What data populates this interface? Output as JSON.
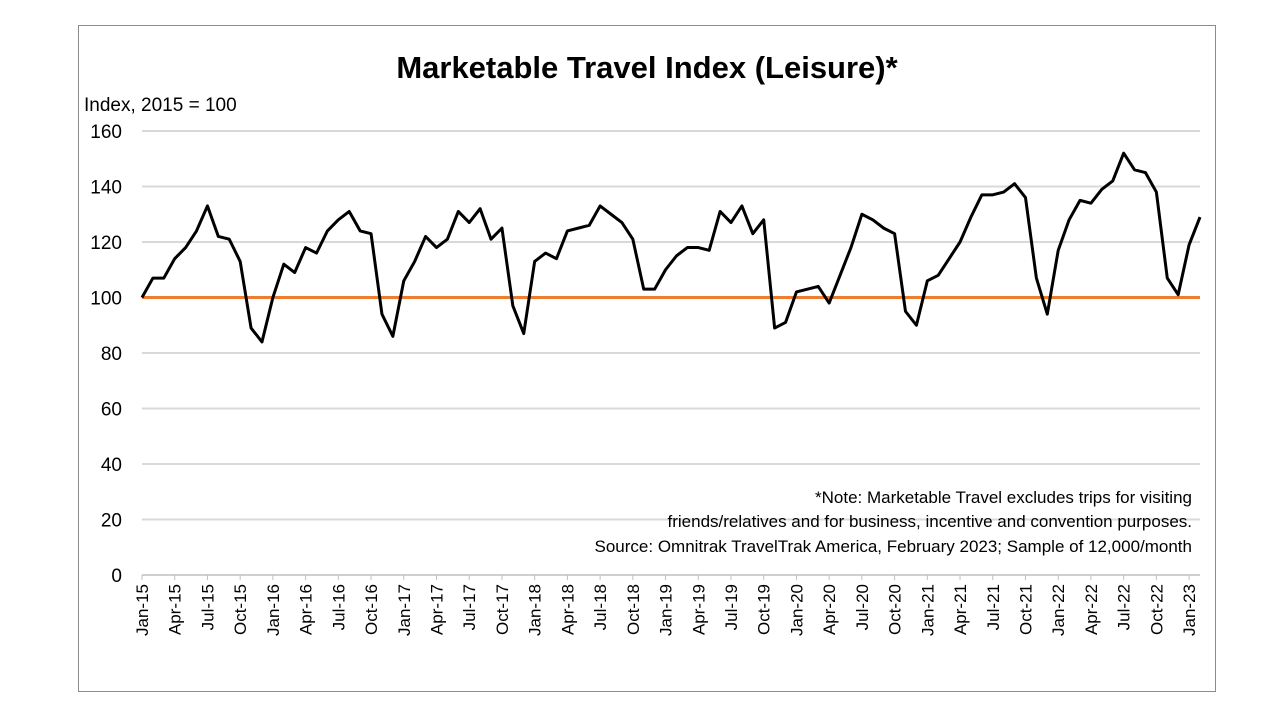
{
  "chart_data": {
    "type": "line",
    "title": "Marketable Travel Index (Leisure)*",
    "ylabel": "Index, 2015 = 100",
    "xlabel": "",
    "ylim": [
      0,
      160
    ],
    "yticks": [
      0,
      20,
      40,
      60,
      80,
      100,
      120,
      140,
      160
    ],
    "grid": true,
    "x_tick_labels": [
      "Jan-15",
      "Apr-15",
      "Jul-15",
      "Oct-15",
      "Jan-16",
      "Apr-16",
      "Jul-16",
      "Oct-16",
      "Jan-17",
      "Apr-17",
      "Jul-17",
      "Oct-17",
      "Jan-18",
      "Apr-18",
      "Jul-18",
      "Oct-18",
      "Jan-19",
      "Apr-19",
      "Jul-19",
      "Oct-19",
      "Jan-20",
      "Apr-20",
      "Jul-20",
      "Oct-20",
      "Jan-21",
      "Apr-21",
      "Jul-21",
      "Oct-21",
      "Jan-22",
      "Apr-22",
      "Jul-22",
      "Oct-22",
      "Jan-23"
    ],
    "x_start": "Jan-15",
    "x_end": "Feb-23",
    "series": [
      {
        "name": "Marketable Travel Index (Leisure)",
        "color": "#000000",
        "values": [
          100,
          107,
          107,
          114,
          118,
          124,
          133,
          122,
          121,
          113,
          89,
          84,
          100,
          112,
          109,
          118,
          116,
          124,
          128,
          131,
          124,
          123,
          94,
          86,
          106,
          113,
          122,
          118,
          121,
          131,
          127,
          132,
          121,
          125,
          97,
          87,
          113,
          116,
          114,
          124,
          125,
          126,
          133,
          130,
          127,
          121,
          103,
          103,
          110,
          115,
          118,
          118,
          117,
          131,
          127,
          133,
          123,
          128,
          89,
          91,
          102,
          103,
          104,
          98,
          108,
          118,
          130,
          128,
          125,
          123,
          95,
          90,
          106,
          108,
          114,
          120,
          129,
          137,
          137,
          138,
          141,
          136,
          107,
          94,
          117,
          128,
          135,
          134,
          139,
          142,
          152,
          146,
          145,
          138,
          107,
          101,
          119,
          129
        ]
      },
      {
        "name": "2015 baseline",
        "color": "#ED7D31",
        "constant": 100
      }
    ],
    "annotations": [
      "*Note: Marketable Travel excludes trips for visiting",
      "friends/relatives and for business, incentive and convention purposes.",
      "Source: Omnitrak TravelTrak America, February 2023; Sample of 12,000/month"
    ]
  }
}
